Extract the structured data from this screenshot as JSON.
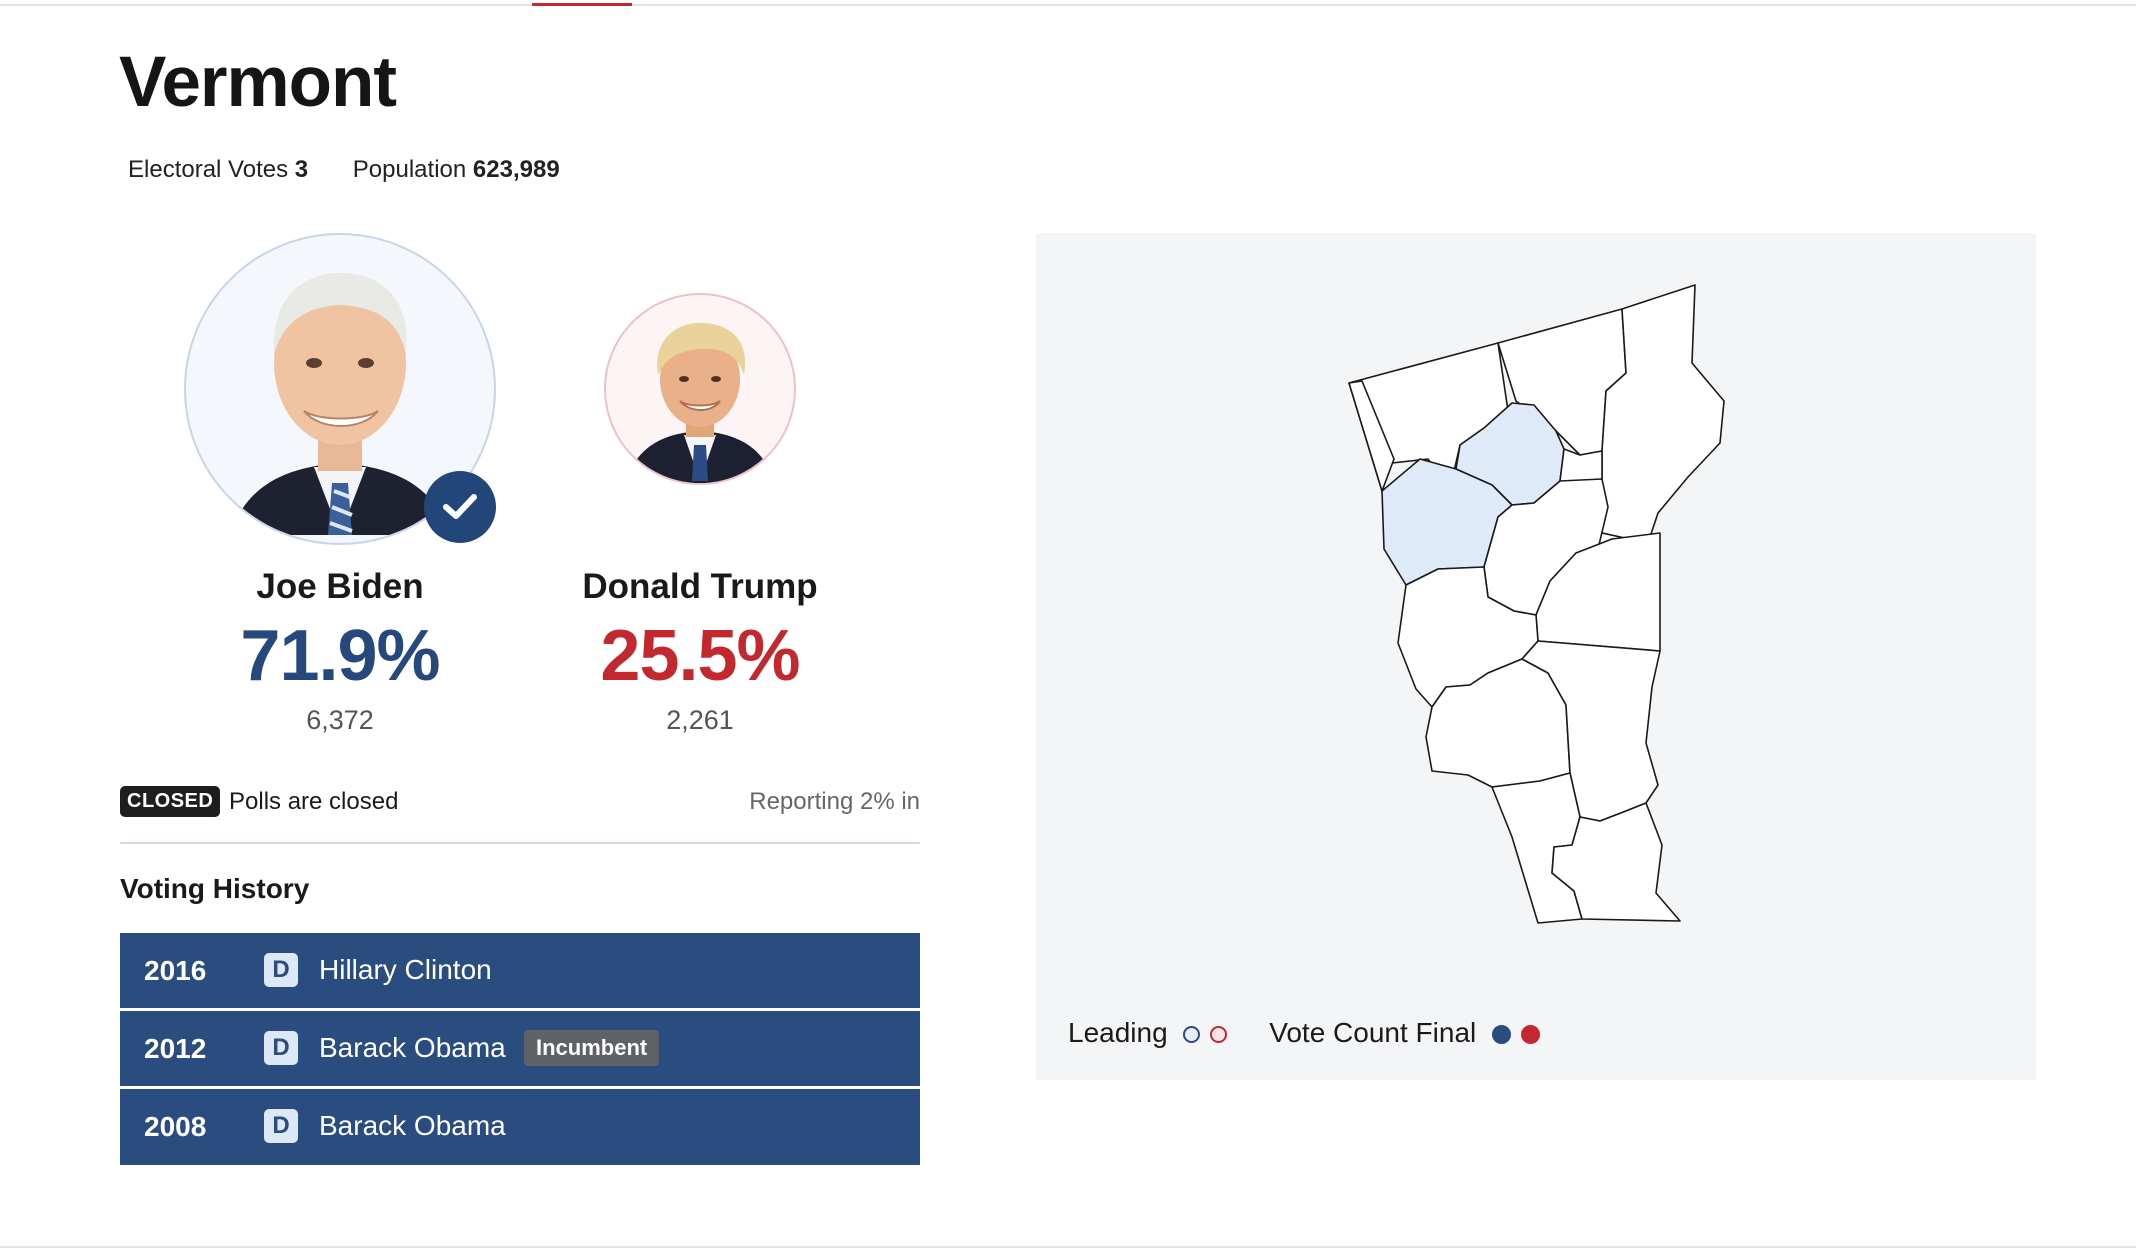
{
  "state": {
    "name": "Vermont",
    "electoral_votes_label": "Electoral Votes",
    "electoral_votes": "3",
    "population_label": "Population",
    "population": "623,989"
  },
  "candidates": [
    {
      "name": "Joe Biden",
      "percent": "71.9%",
      "votes": "6,372",
      "party_color": "#27487d",
      "winner": true
    },
    {
      "name": "Donald Trump",
      "percent": "25.5%",
      "votes": "2,261",
      "party_color": "#c4282f",
      "winner": false
    }
  ],
  "status": {
    "badge": "CLOSED",
    "text": "Polls are closed",
    "reporting": "Reporting 2% in"
  },
  "voting_history": {
    "title": "Voting History",
    "rows": [
      {
        "year": "2016",
        "party": "D",
        "candidate": "Hillary Clinton",
        "tag": ""
      },
      {
        "year": "2012",
        "party": "D",
        "candidate": "Barack Obama",
        "tag": "Incumbent"
      },
      {
        "year": "2008",
        "party": "D",
        "candidate": "Barack Obama",
        "tag": ""
      }
    ]
  },
  "map": {
    "legend_leading": "Leading",
    "legend_final": "Vote Count Final",
    "colors": {
      "dem": "#2b4c7e",
      "rep": "#c4282f",
      "dem_leading_fill": "#dfeaf8",
      "county_fill": "#ffffff",
      "panel_bg": "#f4f5f7"
    }
  },
  "icons": {
    "winner_check": "check-icon",
    "biden_photo": "biden-portrait",
    "trump_photo": "trump-portrait"
  }
}
